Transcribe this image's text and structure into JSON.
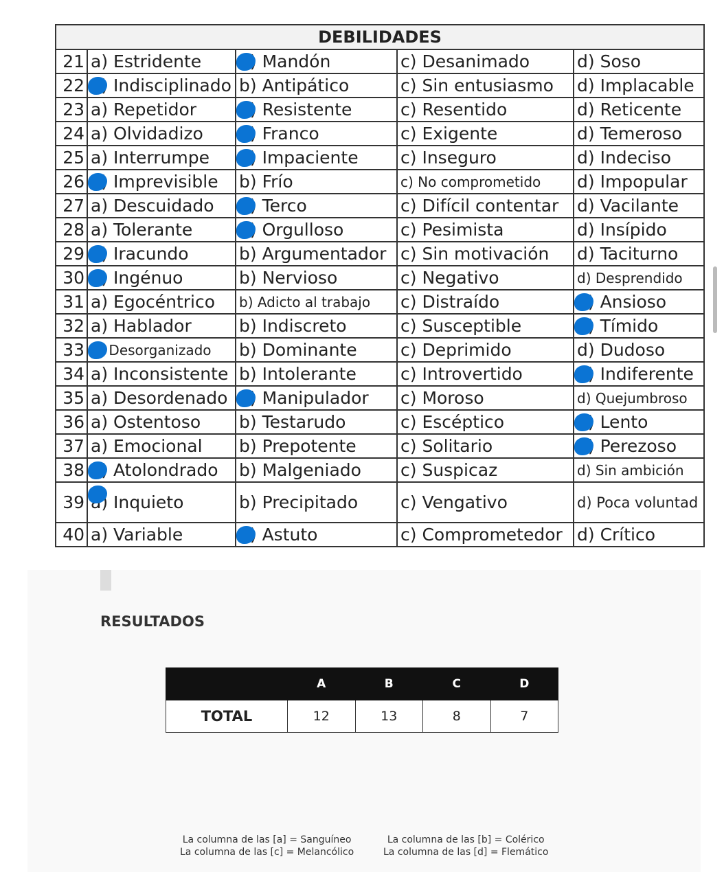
{
  "title": "DEBILIDADES",
  "accent_color": "#0b74d4",
  "rows": [
    {
      "n": "21",
      "a": "a) Estridente",
      "b": "b) Mandón",
      "c": "c) Desanimado",
      "d": "d) Soso",
      "selected": "b"
    },
    {
      "n": "22",
      "a": "a) Indisciplinado",
      "b": "b) Antipático",
      "c": "c) Sin entusiasmo",
      "d": "d) Implacable",
      "selected": "a"
    },
    {
      "n": "23",
      "a": "a) Repetidor",
      "b": "b) Resistente",
      "c": "c) Resentido",
      "d": "d) Reticente",
      "selected": "b"
    },
    {
      "n": "24",
      "a": "a) Olvidadizo",
      "b": "b) Franco",
      "c": "c) Exigente",
      "d": "d) Temeroso",
      "selected": "b"
    },
    {
      "n": "25",
      "a": "a) Interrumpe",
      "b": "b) Impaciente",
      "c": "c) Inseguro",
      "d": "d) Indeciso",
      "selected": "b"
    },
    {
      "n": "26",
      "a": "a) Imprevisible",
      "b": "b) Frío",
      "c": "c) No comprometido",
      "d": "d) Impopular",
      "selected": "a"
    },
    {
      "n": "27",
      "a": "a) Descuidado",
      "b": "b) Terco",
      "c": "c) Difícil contentar",
      "d": "d) Vacilante",
      "selected": "b"
    },
    {
      "n": "28",
      "a": "a) Tolerante",
      "b": "b) Orgulloso",
      "c": "c) Pesimista",
      "d": "d) Insípido",
      "selected": "b"
    },
    {
      "n": "29",
      "a": "a) Iracundo",
      "b": "b) Argumentador",
      "c": "c) Sin motivación",
      "d": "d) Taciturno",
      "selected": "a"
    },
    {
      "n": "30",
      "a": "a) Ingénuo",
      "b": "b) Nervioso",
      "c": "c) Negativo",
      "d": "d) Desprendido",
      "selected": "a"
    },
    {
      "n": "31",
      "a": "a) Egocéntrico",
      "b": "b) Adicto al trabajo",
      "c": "c) Distraído",
      "d": "d) Ansioso",
      "selected": "d"
    },
    {
      "n": "32",
      "a": "a) Hablador",
      "b": "b) Indiscreto",
      "c": "c) Susceptible",
      "d": "d) Tímido",
      "selected": "d"
    },
    {
      "n": "33",
      "a": "a) Desorganizado",
      "b": "b) Dominante",
      "c": "c) Deprimido",
      "d": "d) Dudoso",
      "selected": "a"
    },
    {
      "n": "34",
      "a": "a) Inconsistente",
      "b": "b) Intolerante",
      "c": "c) Introvertido",
      "d": "d) Indiferente",
      "selected": "d"
    },
    {
      "n": "35",
      "a": "a) Desordenado",
      "b": "b) Manipulador",
      "c": "c) Moroso",
      "d": "d) Quejumbroso",
      "selected": "b"
    },
    {
      "n": "36",
      "a": "a) Ostentoso",
      "b": "b) Testarudo",
      "c": "c) Escéptico",
      "d": "d) Lento",
      "selected": "d"
    },
    {
      "n": "37",
      "a": "a) Emocional",
      "b": "b) Prepotente",
      "c": "c) Solitario",
      "d": "d) Perezoso",
      "selected": "d"
    },
    {
      "n": "38",
      "a": "a) Atolondrado",
      "b": "b) Malgeniado",
      "c": "c) Suspicaz",
      "d": "d) Sin ambición",
      "selected": "a"
    },
    {
      "n": "39",
      "a": "a) Inquieto",
      "b": "b) Precipitado",
      "c": "c) Vengativo",
      "d": "d) Poca voluntad",
      "selected": "a"
    },
    {
      "n": "40",
      "a": "a) Variable",
      "b": "b) Astuto",
      "c": "c) Comprometedor",
      "d": "d) Crítico",
      "selected": "b"
    }
  ],
  "results": {
    "title": "RESULTADOS",
    "headers": [
      "A",
      "B",
      "C",
      "D"
    ],
    "row_label": "TOTAL",
    "values": [
      "12",
      "13",
      "8",
      "7"
    ]
  },
  "legend": [
    "La columna de las [a] = Sanguíneo",
    "La columna de las [b] = Colérico",
    "La columna de las [c] = Melancólico",
    "La columna de las [d] = Flemático"
  ]
}
